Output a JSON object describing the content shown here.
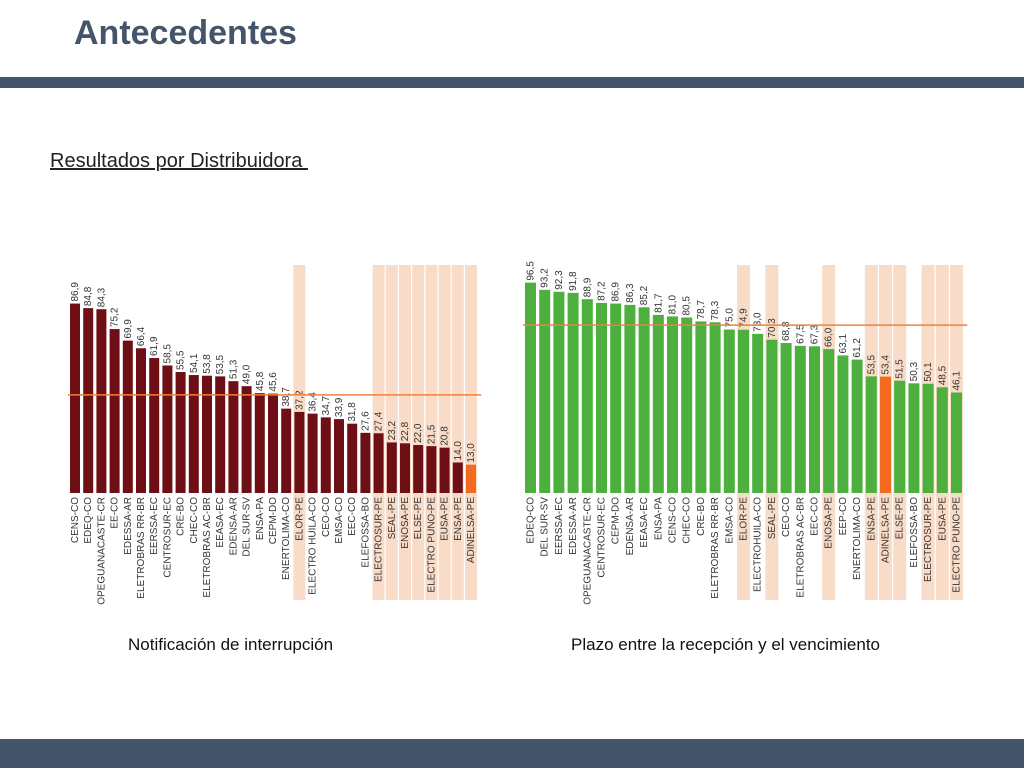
{
  "slide": {
    "title": "Antecedentes",
    "subtitle": "Resultados por Distribuidora "
  },
  "colors": {
    "bar_left": "#6d0f14",
    "bar_right": "#4caf3e",
    "highlight_bar": "#f26b21",
    "highlight_band": "#f9dcc8",
    "reference_line": "#f0813c",
    "accent_bars": "#44546a"
  },
  "chart_data": [
    {
      "type": "bar",
      "caption": "Notificación de interrupción",
      "categories": [
        "CENS-CO",
        "EDEQ-CO",
        "COOPEGUANACASTE-CR",
        "EE-CO",
        "EDESSA-AR",
        "ELETROBRAS RR-BR",
        "EERSSA-EC",
        "CENTROSUR-EC",
        "CRE-BO",
        "CHEC-CO",
        "ELETROBRAS AC-BR",
        "EEASA-EC",
        "EDENSA-AR",
        "DEL SUR-SV",
        "ENSA-PA",
        "CEPM-DO",
        "ENERTOLIMA-CO",
        "ELOR-PE",
        "ELECTRO HUILA-CO",
        "CEO-CO",
        "EMSA-CO",
        "EEC-CO",
        "ELEFOSSA-BO",
        "ELECTROSUR-PE",
        "SEAL-PE",
        "ENOSA-PE",
        "ELSE-PE",
        "ELECTRO PUNO-PE",
        "EUSA-PE",
        "ENSA-PE",
        "ADINELSA-PE"
      ],
      "values": [
        86.9,
        84.8,
        84.3,
        75.2,
        69.9,
        66.4,
        61.9,
        58.5,
        55.5,
        54.1,
        53.8,
        53.5,
        51.3,
        49.0,
        45.8,
        45.6,
        38.7,
        37.2,
        36.4,
        34.7,
        33.9,
        31.8,
        27.6,
        27.4,
        23.2,
        22.8,
        22.0,
        21.5,
        20.8,
        14.0,
        13.0
      ],
      "value_labels": [
        "86,9",
        "84,8",
        "84,3",
        "75,2",
        "69,9",
        "66,4",
        "61,9",
        "58,5",
        "55,5",
        "54,1",
        "53,8",
        "53,5",
        "51,3",
        "49,0",
        "45,8",
        "45,6",
        "38,7",
        "37,2",
        "36,4",
        "34,7",
        "33,9",
        "31,8",
        "27,6",
        "27,4",
        "23,2",
        "22,8",
        "22,0",
        "21,5",
        "20,8",
        "14,0",
        "13,0"
      ],
      "highlight_bands": [
        "ELOR-PE",
        "ELECTROSUR-PE",
        "SEAL-PE",
        "ENOSA-PE",
        "ELSE-PE",
        "ELECTRO PUNO-PE",
        "EUSA-PE",
        "ENSA-PE",
        "ADINELSA-PE"
      ],
      "highlight_bar": "ADINELSA-PE",
      "reference_line": 45,
      "ylim": [
        0,
        100
      ]
    },
    {
      "type": "bar",
      "caption": "Plazo entre la recepción y el vencimiento",
      "categories": [
        "EDEQ-CO",
        "DEL SUR-SV",
        "EERSSA-EC",
        "EDESSA-AR",
        "COOPEGUANACASTE-CR",
        "CENTROSUR-EC",
        "CEPM-DO",
        "EDENSA-AR",
        "EEASA-EC",
        "ENSA-PA",
        "CENS-CO",
        "CHEC-CO",
        "CRE-BO",
        "ELETROBRAS RR-BR",
        "EMSA-CO",
        "ELOR-PE",
        "ELECTROHUILA-CO",
        "SEAL-PE",
        "CEO-CO",
        "ELETROBRAS AC-BR",
        "EEC-CO",
        "ENOSA-PE",
        "EEP-CO",
        "ENERTOLIMA-CO",
        "ENSA-PE",
        "ADINELSA-PE",
        "ELSE-PE",
        "ELEFOSSA-BO",
        "ELECTROSUR-PE",
        "EUSA-PE",
        "ELECTRO PUNO-PE"
      ],
      "values": [
        96.5,
        93.2,
        92.3,
        91.8,
        88.9,
        87.2,
        86.9,
        86.3,
        85.2,
        81.7,
        81.0,
        80.5,
        78.7,
        78.3,
        75.0,
        74.9,
        73.0,
        70.3,
        68.8,
        67.5,
        67.3,
        66.0,
        63.1,
        61.2,
        53.5,
        53.4,
        51.5,
        50.3,
        50.1,
        48.5,
        46.1
      ],
      "value_labels": [
        "96,5",
        "93,2",
        "92,3",
        "91,8",
        "88,9",
        "87,2",
        "86,9",
        "86,3",
        "85,2",
        "81,7",
        "81,0",
        "80,5",
        "78,7",
        "78,3",
        "75,0",
        "74,9",
        "73,0",
        "70,3",
        "68,8",
        "67,5",
        "67,3",
        "66,0",
        "63,1",
        "61,2",
        "53,5",
        "53,4",
        "51,5",
        "50,3",
        "50,1",
        "48,5",
        "46,1"
      ],
      "highlight_bands": [
        "ELOR-PE",
        "SEAL-PE",
        "ENOSA-PE",
        "ENSA-PE",
        "ADINELSA-PE",
        "ELSE-PE",
        "ELECTROSUR-PE",
        "EUSA-PE",
        "ELECTRO PUNO-PE"
      ],
      "highlight_bar": "ADINELSA-PE",
      "reference_line": 77,
      "ylim": [
        0,
        100
      ]
    }
  ]
}
